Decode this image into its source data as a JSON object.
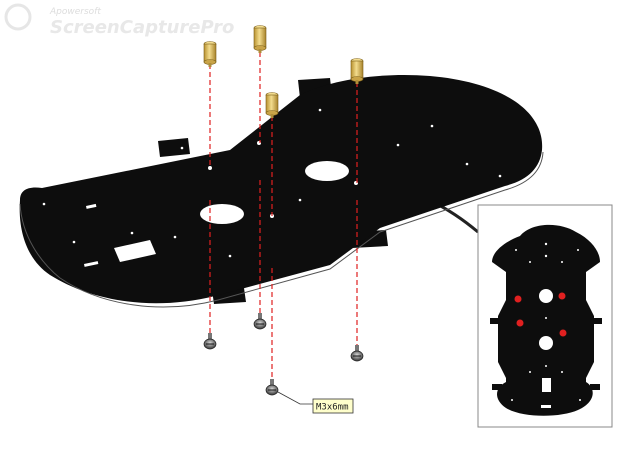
{
  "watermark": {
    "line1": "Apowersoft",
    "line2": "ScreenCapturePro"
  },
  "callout": {
    "label": "M3x6mm"
  },
  "colors": {
    "plate": "#0d0d0d",
    "standoff": "#e6c46a",
    "guide_line": "#e02020",
    "mount_hole_marker": "#e02020",
    "callout_background": "#ffffcc",
    "inset_border": "#888888"
  },
  "parts": {
    "brass_standoffs": 4,
    "screws": 4,
    "inset_highlighted_holes": 4
  }
}
